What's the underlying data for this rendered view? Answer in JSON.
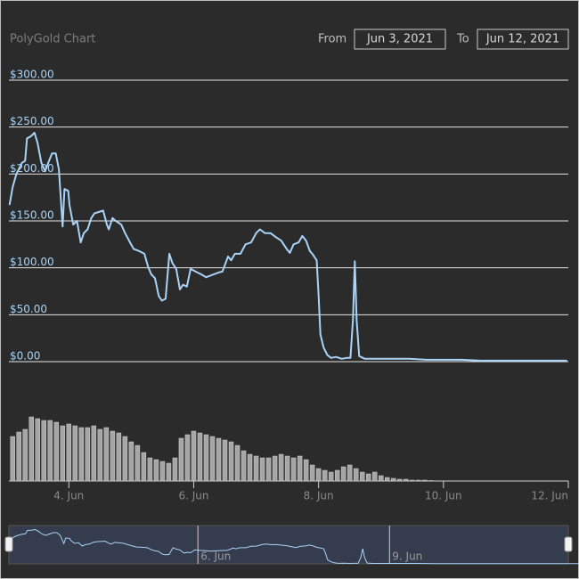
{
  "range_selector": {
    "from_label": "From",
    "from": "Jun 3, 2021",
    "to_label": "To",
    "to": "Jun 12, 2021"
  },
  "chart_data": [
    {
      "type": "line",
      "title": "PolyGold Chart",
      "color": "#a9d3f7",
      "x": [
        3.05,
        3.1,
        3.16,
        3.25,
        3.3,
        3.33,
        3.39,
        3.45,
        3.5,
        3.56,
        3.62,
        3.67,
        3.73,
        3.79,
        3.84,
        3.9,
        3.93,
        3.99,
        4.01,
        4.07,
        4.13,
        4.19,
        4.24,
        4.3,
        4.36,
        4.41,
        4.5,
        4.55,
        4.61,
        4.64,
        4.7,
        4.75,
        4.84,
        4.9,
        4.98,
        5.04,
        5.12,
        5.21,
        5.27,
        5.32,
        5.38,
        5.44,
        5.49,
        5.55,
        5.61,
        5.66,
        5.72,
        5.78,
        5.83,
        5.89,
        5.95,
        6.03,
        6.12,
        6.2,
        6.32,
        6.4,
        6.46,
        6.55,
        6.6,
        6.66,
        6.75,
        6.83,
        6.92,
        7.0,
        7.06,
        7.14,
        7.23,
        7.31,
        7.4,
        7.49,
        7.54,
        7.6,
        7.68,
        7.74,
        7.8,
        7.86,
        7.91,
        7.97,
        8.0,
        8.03,
        8.08,
        8.14,
        8.2,
        8.28,
        8.37,
        8.45,
        8.51,
        8.55,
        8.58,
        8.61,
        8.65,
        8.74,
        8.88,
        9.16,
        9.45,
        9.73,
        10.02,
        10.3,
        10.59,
        10.87,
        11.44,
        11.98
      ],
      "values": [
        167,
        186,
        200,
        212,
        214,
        238,
        240,
        244,
        233,
        212,
        203,
        212,
        222,
        222,
        205,
        144,
        184,
        182,
        167,
        146,
        150,
        127,
        137,
        141,
        153,
        158,
        160,
        161,
        146,
        141,
        153,
        150,
        146,
        137,
        127,
        120,
        118,
        115,
        101,
        93,
        89,
        70,
        65,
        67,
        115,
        105,
        99,
        77,
        82,
        80,
        99,
        96,
        93,
        90,
        93,
        95,
        96,
        112,
        108,
        115,
        115,
        125,
        127,
        137,
        141,
        137,
        137,
        133,
        129,
        120,
        116,
        125,
        127,
        134,
        129,
        118,
        114,
        108,
        72,
        29,
        15,
        7,
        4,
        5,
        3,
        4,
        4,
        44,
        107,
        44,
        6,
        3,
        3,
        3,
        3,
        2,
        2,
        2,
        1,
        1,
        1,
        1
      ],
      "xlim": [
        3.04,
        12.0
      ],
      "ylim": [
        0,
        300
      ],
      "yticks": [
        {
          "value": 0,
          "label": "$0.00"
        },
        {
          "value": 50,
          "label": "$50.00"
        },
        {
          "value": 100,
          "label": "$100.00"
        },
        {
          "value": 150,
          "label": "$150.00"
        },
        {
          "value": 200,
          "label": "$200.00"
        },
        {
          "value": 250,
          "label": "$250.00"
        },
        {
          "value": 300,
          "label": "$300.00"
        }
      ],
      "xticks": [
        {
          "value": 4,
          "label": "4. Jun"
        },
        {
          "value": 6,
          "label": "6. Jun"
        },
        {
          "value": 8,
          "label": "8. Jun"
        },
        {
          "value": 10,
          "label": "10. Jun"
        },
        {
          "value": 12,
          "label": "12. Jun"
        }
      ],
      "grid": true
    },
    {
      "type": "bar",
      "color": "#a6a6a6",
      "x": [
        3.1,
        3.2,
        3.3,
        3.4,
        3.5,
        3.6,
        3.7,
        3.8,
        3.9,
        4.0,
        4.1,
        4.2,
        4.3,
        4.4,
        4.5,
        4.6,
        4.7,
        4.8,
        4.9,
        5.0,
        5.1,
        5.2,
        5.3,
        5.4,
        5.5,
        5.6,
        5.7,
        5.8,
        5.9,
        6.0,
        6.1,
        6.2,
        6.3,
        6.4,
        6.5,
        6.6,
        6.7,
        6.8,
        6.9,
        7.0,
        7.1,
        7.2,
        7.3,
        7.4,
        7.5,
        7.6,
        7.7,
        7.8,
        7.9,
        8.0,
        8.1,
        8.2,
        8.3,
        8.4,
        8.5,
        8.6,
        8.7,
        8.8,
        8.9,
        9.0,
        9.1,
        9.2,
        9.3,
        9.4,
        9.5,
        9.6,
        9.7,
        9.8
      ],
      "values": [
        50,
        55,
        58,
        72,
        70,
        68,
        68,
        66,
        62,
        64,
        62,
        60,
        60,
        62,
        58,
        60,
        56,
        54,
        50,
        44,
        40,
        32,
        26,
        24,
        22,
        20,
        26,
        48,
        52,
        56,
        54,
        52,
        50,
        48,
        46,
        44,
        40,
        34,
        30,
        28,
        26,
        26,
        28,
        30,
        28,
        26,
        28,
        24,
        18,
        14,
        12,
        10,
        12,
        16,
        18,
        14,
        10,
        8,
        10,
        6,
        4,
        3,
        2,
        2,
        1,
        1,
        1,
        0.5
      ],
      "xlim": [
        3.04,
        12.0
      ],
      "ylim": [
        0,
        80
      ]
    },
    {
      "type": "navigator",
      "color": "#a9d3f7",
      "xlim": [
        3.04,
        11.8
      ],
      "ylim": [
        0,
        260
      ],
      "xticks": [
        {
          "value": 6,
          "label": "6. Jun"
        },
        {
          "value": 9,
          "label": "9. Jun"
        }
      ]
    }
  ]
}
